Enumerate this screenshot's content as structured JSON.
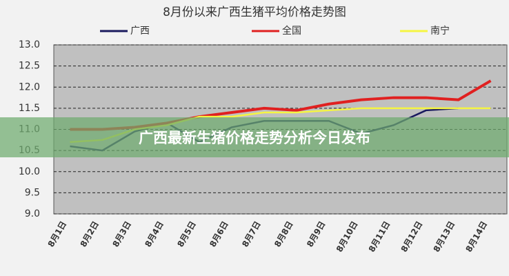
{
  "chart_data": {
    "type": "line",
    "title": "8月份以来广西生猪平均价格走势图",
    "categories": [
      "8月1日",
      "8月2日",
      "8月3日",
      "8月4日",
      "8月5日",
      "8月6日",
      "8月7日",
      "8月8日",
      "8月9日",
      "8月10日",
      "8月11日",
      "8月12日",
      "8月13日",
      "8月14日"
    ],
    "series": [
      {
        "name": "广西",
        "color": "#1a1a5e",
        "values": [
          10.6,
          10.5,
          10.95,
          11.15,
          10.7,
          11.05,
          11.2,
          11.2,
          11.2,
          10.9,
          11.1,
          11.45,
          11.5,
          null
        ]
      },
      {
        "name": "全国",
        "color": "#e02020",
        "values": [
          11.0,
          11.0,
          11.05,
          11.15,
          11.3,
          11.4,
          11.5,
          11.45,
          11.6,
          11.7,
          11.75,
          11.75,
          11.7,
          12.15
        ]
      },
      {
        "name": "南宁",
        "color": "#f5f542",
        "values": [
          10.7,
          10.75,
          11.0,
          11.1,
          11.3,
          11.3,
          11.4,
          11.4,
          11.45,
          11.5,
          11.5,
          11.5,
          11.5,
          11.5
        ]
      }
    ],
    "ylim": [
      9,
      13
    ],
    "yticks": [
      {
        "value": 9,
        "label": "9.0"
      },
      9.5,
      {
        "value": 10,
        "label": "10.0"
      },
      10.5,
      {
        "value": 11,
        "label": "11.0"
      },
      11.5,
      {
        "value": 12,
        "label": "12.0"
      },
      12.5,
      {
        "value": 13,
        "label": "13.0"
      }
    ],
    "grid": true,
    "legend": "top"
  },
  "banner": {
    "title": "广西最新生猪价格走势分析今日发布"
  }
}
